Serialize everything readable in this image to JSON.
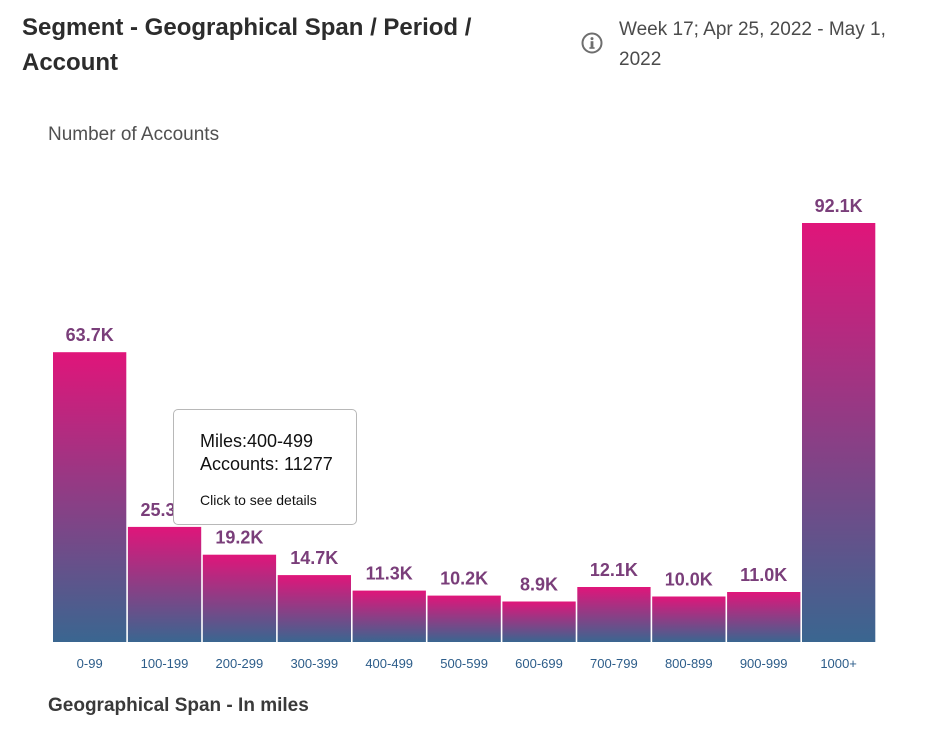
{
  "header": {
    "title": "Segment - Geographical Span / Period / Account",
    "period": "Week 17; Apr 25, 2022 - May 1, 2022",
    "info_icon": "info-icon"
  },
  "tooltip": {
    "miles": "Miles:400-499",
    "accounts": "Accounts: 11277",
    "hint": "Click to see details"
  },
  "chart_data": {
    "type": "bar",
    "title": "",
    "ylabel": "Number of Accounts",
    "xlabel": "Geographical Span - In miles",
    "categories": [
      "0-99",
      "100-199",
      "200-299",
      "300-399",
      "400-499",
      "500-599",
      "600-699",
      "700-799",
      "800-899",
      "900-999",
      "1000+"
    ],
    "values": [
      63.7,
      25.3,
      19.2,
      14.7,
      11.3,
      10.2,
      8.9,
      12.1,
      10.0,
      11.0,
      92.1
    ],
    "value_labels": [
      "63.7K",
      "25.3K",
      "19.2K",
      "14.7K",
      "11.3K",
      "10.2K",
      "8.9K",
      "12.1K",
      "10.0K",
      "11.0K",
      "92.1K"
    ],
    "unit": "K",
    "ylim": [
      0,
      92.1
    ],
    "grid": false,
    "legend": "none",
    "colors": {
      "top": "#e0157a",
      "bottom": "#3a6690"
    }
  }
}
